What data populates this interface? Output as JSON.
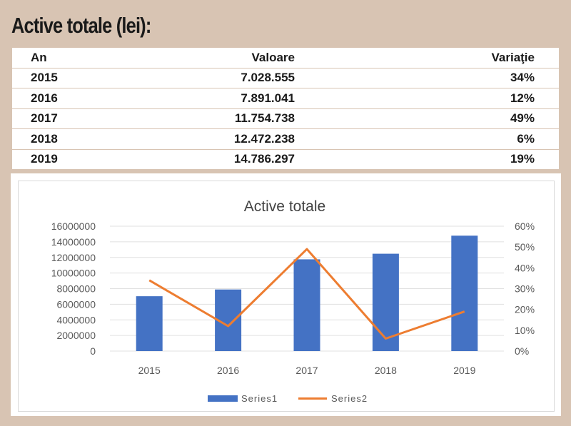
{
  "page": {
    "title": "Active totale (lei):"
  },
  "table": {
    "headers": [
      "An",
      "Valoare",
      "Variaţie"
    ],
    "rows": [
      [
        "2015",
        "7.028.555",
        "34%"
      ],
      [
        "2016",
        "7.891.041",
        "12%"
      ],
      [
        "2017",
        "11.754.738",
        "49%"
      ],
      [
        "2018",
        "12.472.238",
        "6%"
      ],
      [
        "2019",
        "14.786.297",
        "19%"
      ]
    ]
  },
  "chart_data": {
    "type": "bar",
    "title": "Active totale",
    "categories": [
      "2015",
      "2016",
      "2017",
      "2018",
      "2019"
    ],
    "series": [
      {
        "name": "Series1",
        "kind": "bar",
        "axis": "left",
        "color": "#4472c4",
        "values": [
          7028555,
          7891041,
          11754738,
          12472238,
          14786297
        ]
      },
      {
        "name": "Series2",
        "kind": "line",
        "axis": "right",
        "color": "#ed7d31",
        "values": [
          0.34,
          0.12,
          0.49,
          0.06,
          0.19
        ]
      }
    ],
    "y_left": {
      "min": 0,
      "max": 16000000,
      "ticks": [
        "0",
        "2000000",
        "4000000",
        "6000000",
        "8000000",
        "10000000",
        "12000000",
        "14000000",
        "16000000"
      ]
    },
    "y_right": {
      "min": 0,
      "max": 0.6,
      "ticks": [
        "0%",
        "10%",
        "20%",
        "30%",
        "40%",
        "50%",
        "60%"
      ]
    },
    "grid": true,
    "legend_position": "bottom"
  }
}
